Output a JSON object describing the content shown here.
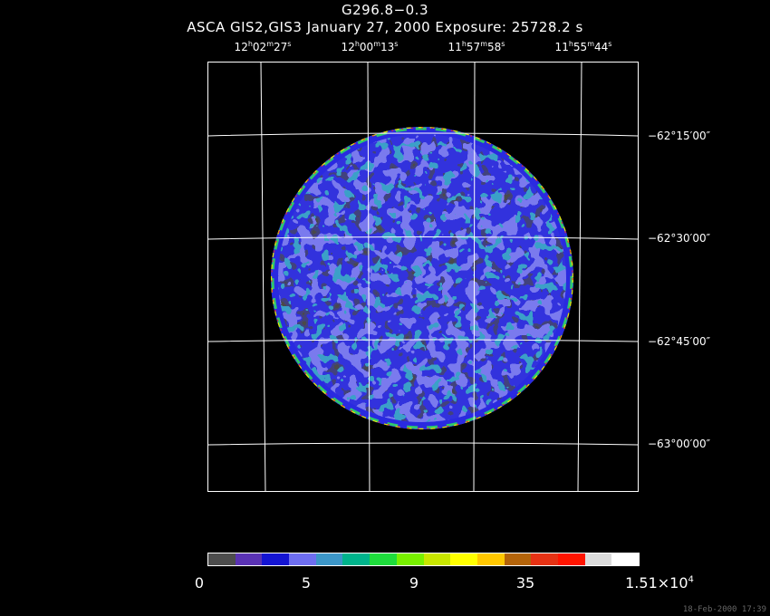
{
  "title": "G296.8−0.3",
  "subtitle": "ASCA GIS2,GIS3 January 27, 2000 Exposure: 25728.2 s",
  "ra_ticks": [
    {
      "h": "12",
      "m": "02",
      "s": "27"
    },
    {
      "h": "12",
      "m": "00",
      "s": "13"
    },
    {
      "h": "11",
      "m": "57",
      "s": "58"
    },
    {
      "h": "11",
      "m": "55",
      "s": "44"
    }
  ],
  "dec_ticks": [
    "−62°15′00″",
    "−62°30′00″",
    "−62°45′00″",
    "−63°00′00″"
  ],
  "colorbar": {
    "colors": [
      "#4d4d4d",
      "#5a32b4",
      "#1414d2",
      "#6e6ef0",
      "#3c96c8",
      "#00b48c",
      "#1edc3c",
      "#78f000",
      "#c8e600",
      "#ffff00",
      "#ffc800",
      "#b4640a",
      "#e63214",
      "#ff1400",
      "#dcdcdc",
      "#ffffff"
    ],
    "labels": [
      "0",
      "5",
      "9",
      "35",
      "1.51×10",
      "4"
    ]
  },
  "timestamp": "18-Feb-2000 17:39",
  "map": {
    "colors_legend": "grey, blue, cyan, green, yellow, red"
  }
}
